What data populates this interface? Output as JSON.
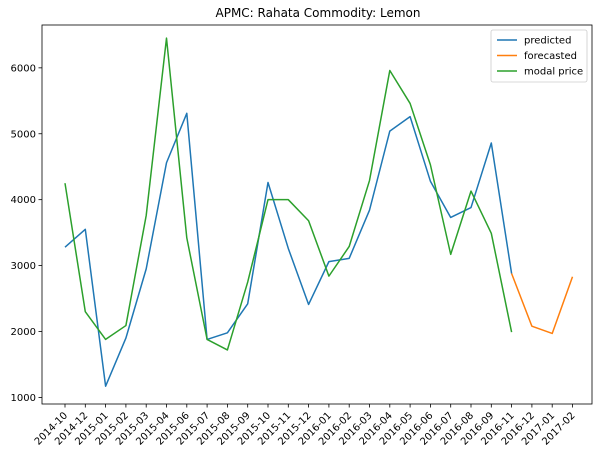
{
  "chart_data": {
    "type": "line",
    "title": "APMC: Rahata  Commodity: Lemon",
    "xlabel": "",
    "ylabel": "",
    "categories": [
      "2014-10",
      "2014-12",
      "2015-01",
      "2015-02",
      "2015-03",
      "2015-04",
      "2015-06",
      "2015-07",
      "2015-08",
      "2015-09",
      "2015-10",
      "2015-11",
      "2015-12",
      "2016-01",
      "2016-02",
      "2016-03",
      "2016-04",
      "2016-05",
      "2016-06",
      "2016-07",
      "2016-08",
      "2016-09",
      "2016-11",
      "2016-12",
      "2017-01",
      "2017-02"
    ],
    "yticks": [
      1000,
      2000,
      3000,
      4000,
      5000,
      6000
    ],
    "ylim": [
      900,
      6650
    ],
    "grid": false,
    "legend_position": "top-right",
    "series": [
      {
        "name": "predicted",
        "color": "#1f77b4",
        "values": [
          3280,
          3550,
          1170,
          1900,
          2950,
          4560,
          5310,
          1880,
          1980,
          2420,
          4260,
          3260,
          2410,
          3060,
          3110,
          3840,
          5040,
          5260,
          4280,
          3730,
          3880,
          4860,
          2880,
          null,
          null,
          null
        ]
      },
      {
        "name": "forecasted",
        "color": "#ff7f0e",
        "values": [
          null,
          null,
          null,
          null,
          null,
          null,
          null,
          null,
          null,
          null,
          null,
          null,
          null,
          null,
          null,
          null,
          null,
          null,
          null,
          null,
          null,
          null,
          2880,
          2080,
          1970,
          2830
        ]
      },
      {
        "name": "modal price",
        "color": "#2ca02c",
        "values": [
          4250,
          2300,
          1880,
          2090,
          3760,
          6450,
          3420,
          1880,
          1720,
          2750,
          4000,
          4000,
          3680,
          2840,
          3290,
          4290,
          5960,
          5460,
          4530,
          3170,
          4130,
          3490,
          1990,
          null,
          null,
          null
        ]
      }
    ]
  }
}
